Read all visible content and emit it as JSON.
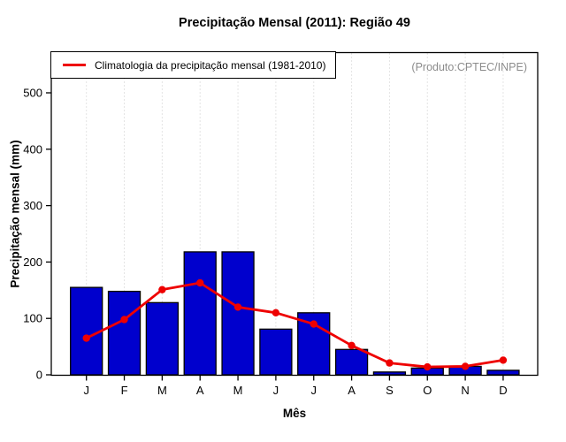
{
  "title": "Precipitação Mensal (2011): Região 49",
  "annotation": "(Produto:CPTEC/INPE)",
  "legend": {
    "label": "Climatologia da precipitação mensal (1981-2010)",
    "line_color": "#ee0000"
  },
  "chart_data": {
    "type": "bar",
    "title": "Precipitação Mensal (2011): Região 49",
    "xlabel": "Mês",
    "ylabel": "Precipitação mensal (mm)",
    "categories": [
      "J",
      "F",
      "M",
      "A",
      "M",
      "J",
      "J",
      "A",
      "S",
      "O",
      "N",
      "D"
    ],
    "yticks": [
      0,
      100,
      200,
      300,
      400,
      500
    ],
    "ylim": [
      0,
      570
    ],
    "grid": "vertical-dotted",
    "legend_position": "top-left-inside",
    "series": [
      {
        "name": "Precipitação mensal (2011)",
        "type": "bar",
        "color": "#0000cd",
        "values": [
          155,
          148,
          128,
          218,
          218,
          81,
          110,
          45,
          5,
          12,
          15,
          8
        ]
      },
      {
        "name": "Climatologia da precipitação mensal (1981-2010)",
        "type": "line",
        "color": "#ee0000",
        "values": [
          65,
          98,
          151,
          163,
          120,
          110,
          90,
          52,
          21,
          14,
          15,
          26
        ]
      }
    ],
    "colors": {
      "bar": "#0000cd",
      "bar_border": "#000000",
      "line": "#ee0000",
      "grid": "#c8c8c8",
      "axis": "#000000",
      "annotation_text": "#8c8c8c"
    }
  }
}
